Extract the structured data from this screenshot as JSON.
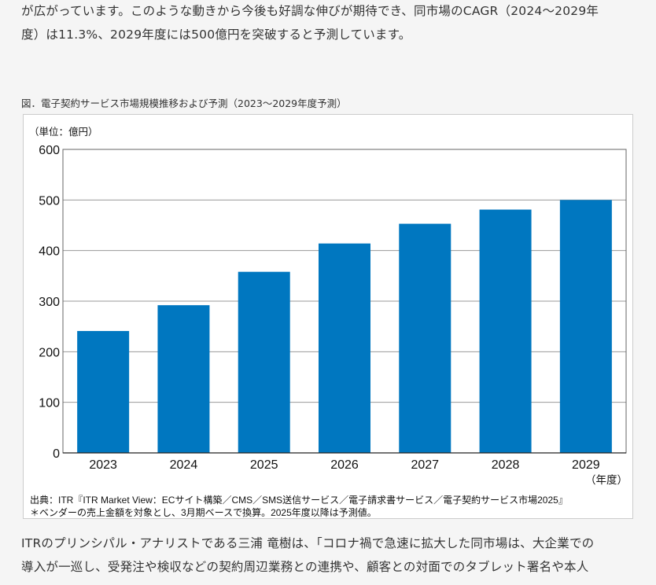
{
  "article": {
    "paragraph_top": [
      "が広がっています。このような動きから今後も好調な伸びが期待でき、同市場のCAGR（2024～2029年",
      "度）は11.3%、2029年度には500億円を突破すると予測しています。"
    ],
    "paragraph_bottom": [
      "ITRのプリンシパル・アナリストである三浦 竜樹は、「コロナ禍で急速に拡大した同市場は、大企業での",
      "導入が一巡し、受発注や検収などの契約周辺業務との連携や、顧客との対面でのタブレット署名や本人"
    ]
  },
  "figure": {
    "caption": "図．電子契約サービス市場規模推移および予測（2023～2029年度予測）",
    "source": "出典：ITR『ITR Market View：ECサイト構築／CMS／SMS送信サービス／電子請求書サービス／電子契約サービス市場2025』",
    "footnote": "＊ベンダーの売上金額を対象とし、3月期ベースで換算。2025年度以降は予測値。"
  },
  "chart_data": {
    "type": "bar",
    "unit_label": "（単位：億円）",
    "xlabel": "（年度）",
    "categories": [
      "2023",
      "2024",
      "2025",
      "2026",
      "2027",
      "2028",
      "2029"
    ],
    "values": [
      241,
      292,
      358,
      414,
      453,
      481,
      500
    ],
    "ylim": [
      0,
      600
    ],
    "yticks": [
      0,
      100,
      200,
      300,
      400,
      500,
      600
    ],
    "grid": true,
    "bar_color": "#0077c0"
  }
}
